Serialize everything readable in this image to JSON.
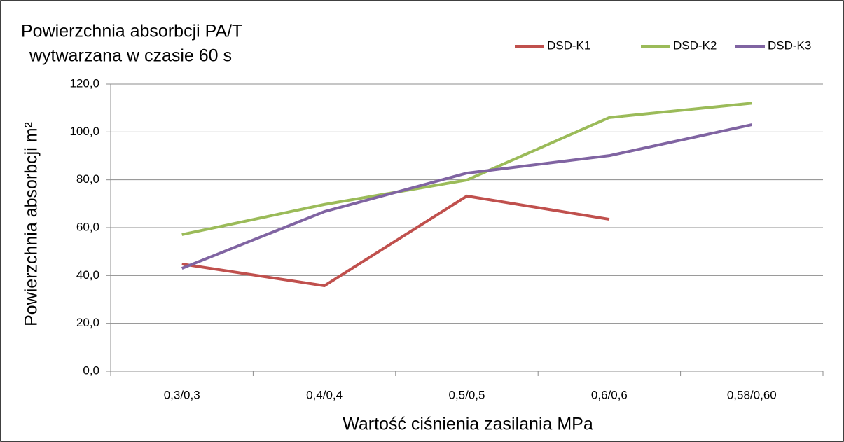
{
  "chart_data": {
    "type": "line",
    "title": [
      "Powierzchnia absorbcji  PA/T",
      "wytwarzana w czasie 60 s"
    ],
    "x_label": "Wartość ciśnienia zasilania MPa",
    "y_label": "Powierzchnia absorbcji m²",
    "categories": [
      "0,3/0,3",
      "0,4/0,4",
      "0,5/0,5",
      "0,6/0,6",
      "0,58/0,60"
    ],
    "series": [
      {
        "name": "DSD-K1",
        "color": "#c0504d",
        "values": [
          44.8,
          35.7,
          73.2,
          63.5,
          null
        ]
      },
      {
        "name": "DSD-K2",
        "color": "#9bbb59",
        "values": [
          57.1,
          69.7,
          79.9,
          106,
          112
        ]
      },
      {
        "name": "DSD-K3",
        "color": "#8064a2",
        "values": [
          43,
          66.7,
          82.8,
          90.1,
          103
        ]
      }
    ],
    "ylim": [
      0,
      120
    ],
    "yticks": [
      {
        "value": 0,
        "label": "0,0"
      },
      {
        "value": 20,
        "label": "20,0"
      },
      {
        "value": 40,
        "label": "40,0"
      },
      {
        "value": 60,
        "label": "60,0"
      },
      {
        "value": 80,
        "label": "80,0"
      },
      {
        "value": 100,
        "label": "100,0"
      },
      {
        "value": 120,
        "label": "120,0"
      }
    ],
    "grid": true,
    "legend": "top-right"
  }
}
